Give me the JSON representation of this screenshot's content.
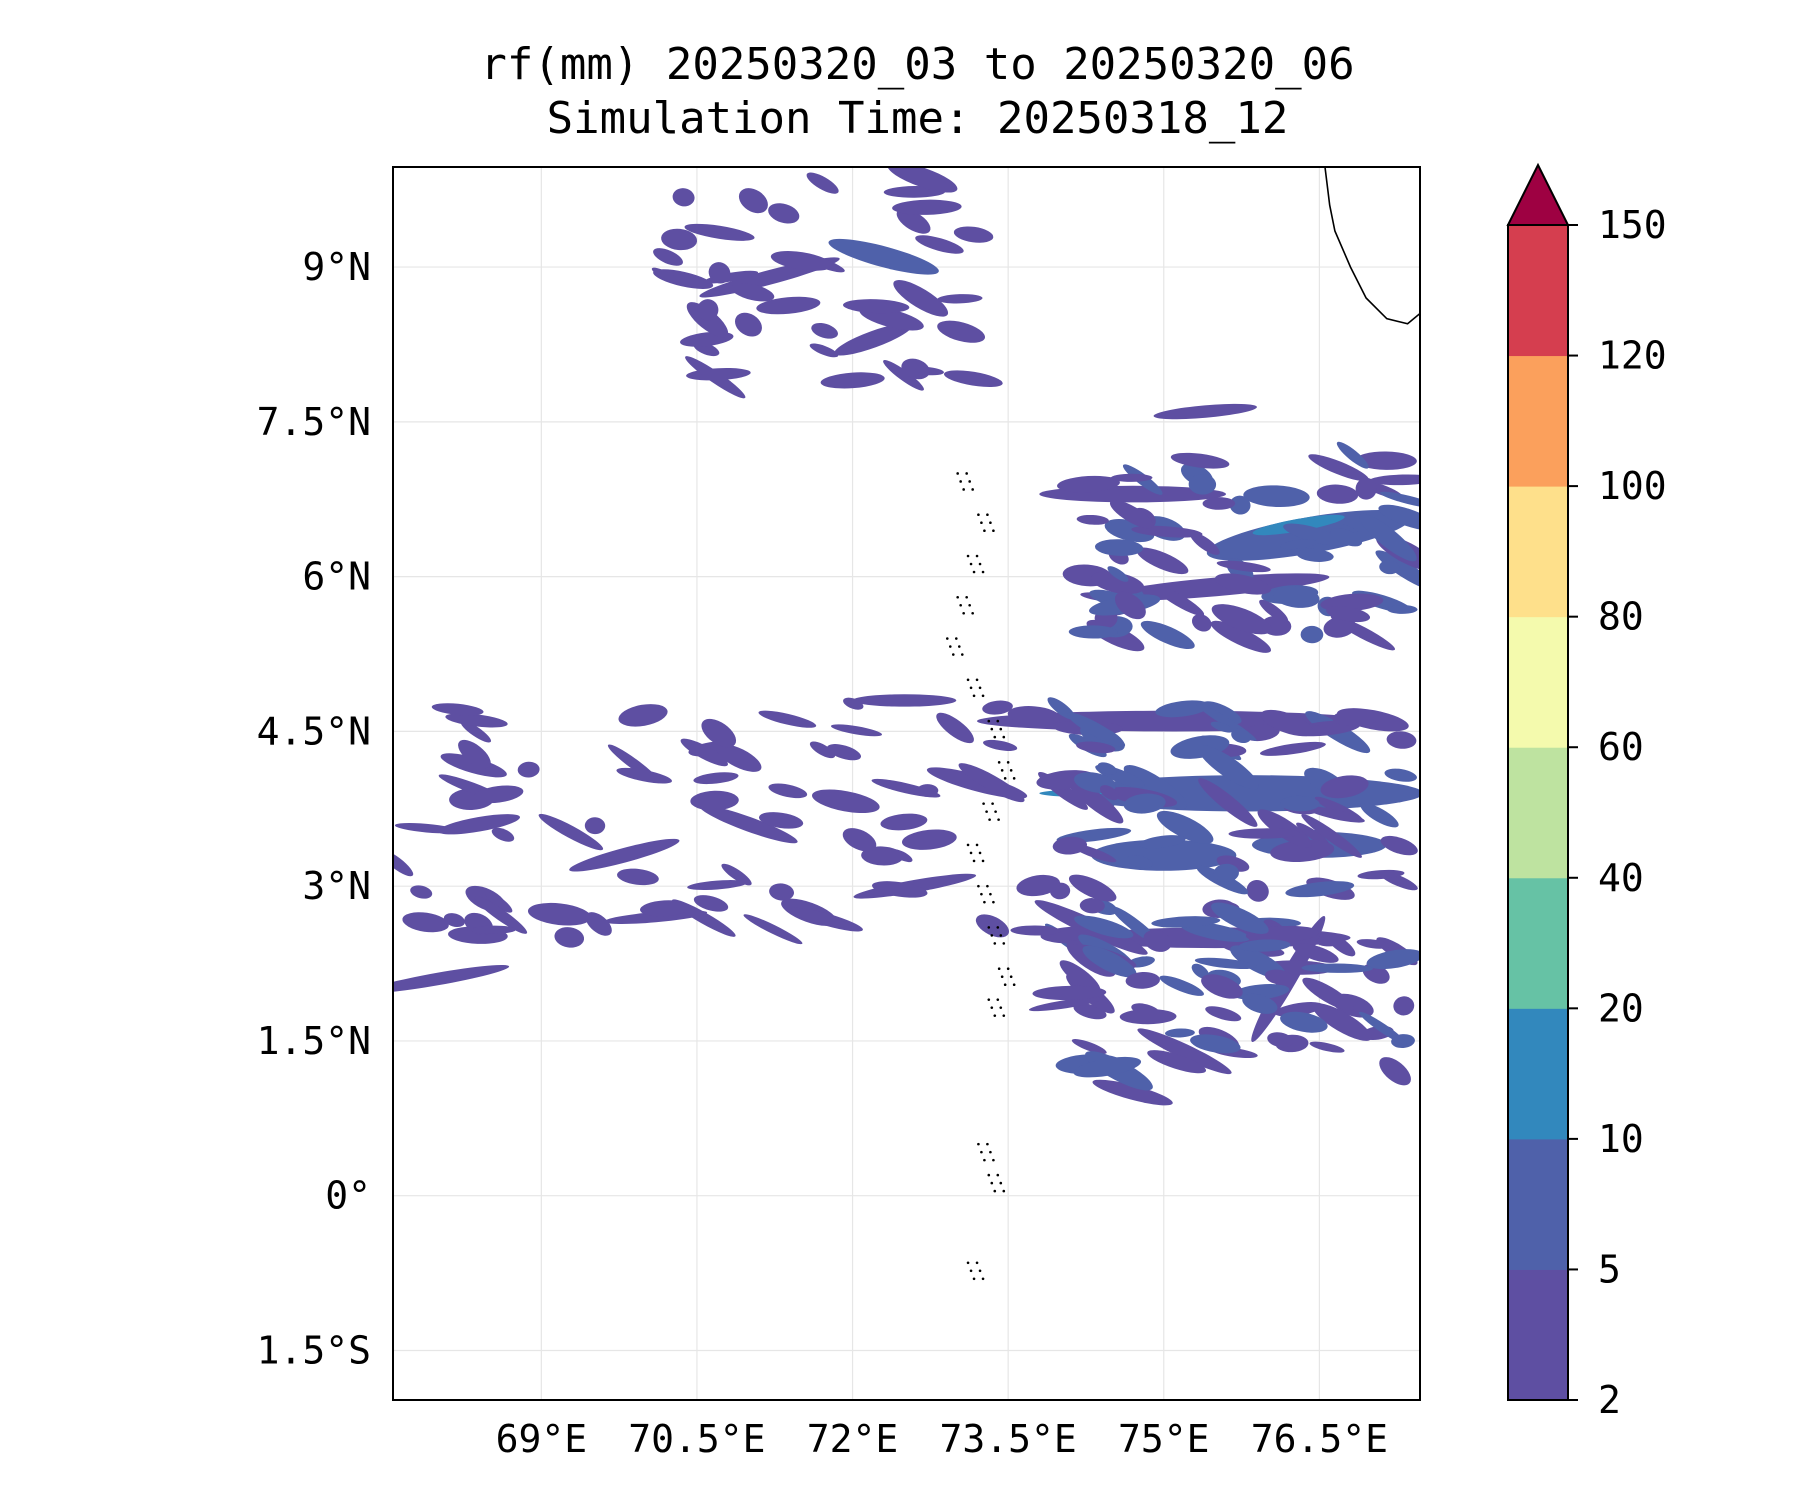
{
  "title": {
    "line1": "rf(mm) 20250320_03 to 20250320_06",
    "line2": "Simulation Time: 20250318_12"
  },
  "map": {
    "lon_range": [
      67.57,
      77.47
    ],
    "lat_range": [
      -1.98,
      9.97
    ],
    "lon_ticks": [
      {
        "value": 69.0,
        "label": "69°E"
      },
      {
        "value": 70.5,
        "label": "70.5°E"
      },
      {
        "value": 72.0,
        "label": "72°E"
      },
      {
        "value": 73.5,
        "label": "73.5°E"
      },
      {
        "value": 75.0,
        "label": "75°E"
      },
      {
        "value": 76.5,
        "label": "76.5°E"
      }
    ],
    "lat_ticks": [
      {
        "value": 9.0,
        "label": "9°N"
      },
      {
        "value": 7.5,
        "label": "7.5°N"
      },
      {
        "value": 6.0,
        "label": "6°N"
      },
      {
        "value": 4.5,
        "label": "4.5°N"
      },
      {
        "value": 3.0,
        "label": "3°N"
      },
      {
        "value": 1.5,
        "label": "1.5°N"
      },
      {
        "value": 0.0,
        "label": "0°"
      },
      {
        "value": -1.5,
        "label": "1.5°S"
      }
    ],
    "grid": true,
    "coastline": [
      [
        76.55,
        10.0
      ],
      [
        76.6,
        9.6
      ],
      [
        76.65,
        9.35
      ],
      [
        76.8,
        9.0
      ],
      [
        76.95,
        8.7
      ],
      [
        77.15,
        8.5
      ],
      [
        77.35,
        8.45
      ],
      [
        77.47,
        8.55
      ]
    ],
    "rain_bands": [
      {
        "lon": 68.0,
        "lat": 2.1,
        "len": 1.4,
        "wid": 0.12,
        "angle": 10,
        "level": 1
      },
      {
        "lon": 69.8,
        "lat": 3.3,
        "len": 1.1,
        "wid": 0.14,
        "angle": 15,
        "level": 1
      },
      {
        "lon": 71.0,
        "lat": 3.6,
        "len": 1.0,
        "wid": 0.14,
        "angle": -20,
        "level": 1
      },
      {
        "lon": 72.6,
        "lat": 3.0,
        "len": 1.2,
        "wid": 0.12,
        "angle": 10,
        "level": 1
      },
      {
        "lon": 71.2,
        "lat": 8.9,
        "len": 1.4,
        "wid": 0.14,
        "angle": 15,
        "level": 1
      },
      {
        "lon": 72.3,
        "lat": 9.1,
        "len": 1.1,
        "wid": 0.2,
        "angle": -15,
        "level": 2
      },
      {
        "lon": 72.2,
        "lat": 8.3,
        "len": 0.8,
        "wid": 0.16,
        "angle": 20,
        "level": 1
      },
      {
        "lon": 74.7,
        "lat": 6.8,
        "len": 1.8,
        "wid": 0.16,
        "angle": 0,
        "level": 1
      },
      {
        "lon": 76.4,
        "lat": 6.4,
        "len": 2.0,
        "wid": 0.35,
        "angle": 10,
        "level": 2
      },
      {
        "lon": 76.3,
        "lat": 6.5,
        "len": 0.9,
        "wid": 0.12,
        "angle": 10,
        "level": 3
      },
      {
        "lon": 75.5,
        "lat": 5.9,
        "len": 2.2,
        "wid": 0.18,
        "angle": 5,
        "level": 1
      },
      {
        "lon": 75.1,
        "lat": 4.6,
        "len": 3.8,
        "wid": 0.2,
        "angle": 0,
        "level": 1
      },
      {
        "lon": 75.8,
        "lat": 3.9,
        "len": 3.4,
        "wid": 0.35,
        "angle": 0,
        "level": 2
      },
      {
        "lon": 74.4,
        "lat": 3.9,
        "len": 1.2,
        "wid": 0.08,
        "angle": 0,
        "level": 3
      },
      {
        "lon": 75.0,
        "lat": 3.3,
        "len": 1.4,
        "wid": 0.3,
        "angle": 0,
        "level": 2
      },
      {
        "lon": 76.5,
        "lat": 3.4,
        "len": 1.3,
        "wid": 0.25,
        "angle": 0,
        "level": 2
      },
      {
        "lon": 75.5,
        "lat": 2.5,
        "len": 2.6,
        "wid": 0.2,
        "angle": 0,
        "level": 1
      },
      {
        "lon": 75.2,
        "lat": 1.4,
        "len": 1.0,
        "wid": 0.14,
        "angle": -25,
        "level": 1
      },
      {
        "lon": 76.2,
        "lat": 2.1,
        "len": 1.4,
        "wid": 0.16,
        "angle": 60,
        "level": 1
      },
      {
        "lon": 74.7,
        "lat": 1.0,
        "len": 0.8,
        "wid": 0.14,
        "angle": -15,
        "level": 1
      },
      {
        "lon": 74.3,
        "lat": 2.6,
        "len": 1.2,
        "wid": 0.16,
        "angle": -25,
        "level": 1
      },
      {
        "lon": 73.2,
        "lat": 4.0,
        "len": 1.0,
        "wid": 0.16,
        "angle": -15,
        "level": 1
      },
      {
        "lon": 75.4,
        "lat": 7.6,
        "len": 1.0,
        "wid": 0.12,
        "angle": 5,
        "level": 1
      },
      {
        "lon": 72.5,
        "lat": 4.8,
        "len": 1.0,
        "wid": 0.12,
        "angle": 0,
        "level": 1
      },
      {
        "lon": 68.4,
        "lat": 3.6,
        "len": 0.8,
        "wid": 0.14,
        "angle": 10,
        "level": 1
      },
      {
        "lon": 70.1,
        "lat": 2.7,
        "len": 1.0,
        "wid": 0.1,
        "angle": 5,
        "level": 1
      }
    ]
  },
  "colorbar": {
    "levels": [
      2,
      5,
      10,
      20,
      40,
      60,
      80,
      100,
      120,
      150
    ],
    "labels": [
      "2",
      "5",
      "10",
      "20",
      "40",
      "60",
      "80",
      "100",
      "120",
      "150"
    ],
    "colors": [
      "#5e4fa2",
      "#4f61aa",
      "#3288bd",
      "#66c2a5",
      "#bee3a0",
      "#f4faad",
      "#fee08b",
      "#fba05c",
      "#d53e4f"
    ],
    "extend_color": "#9e0142"
  }
}
